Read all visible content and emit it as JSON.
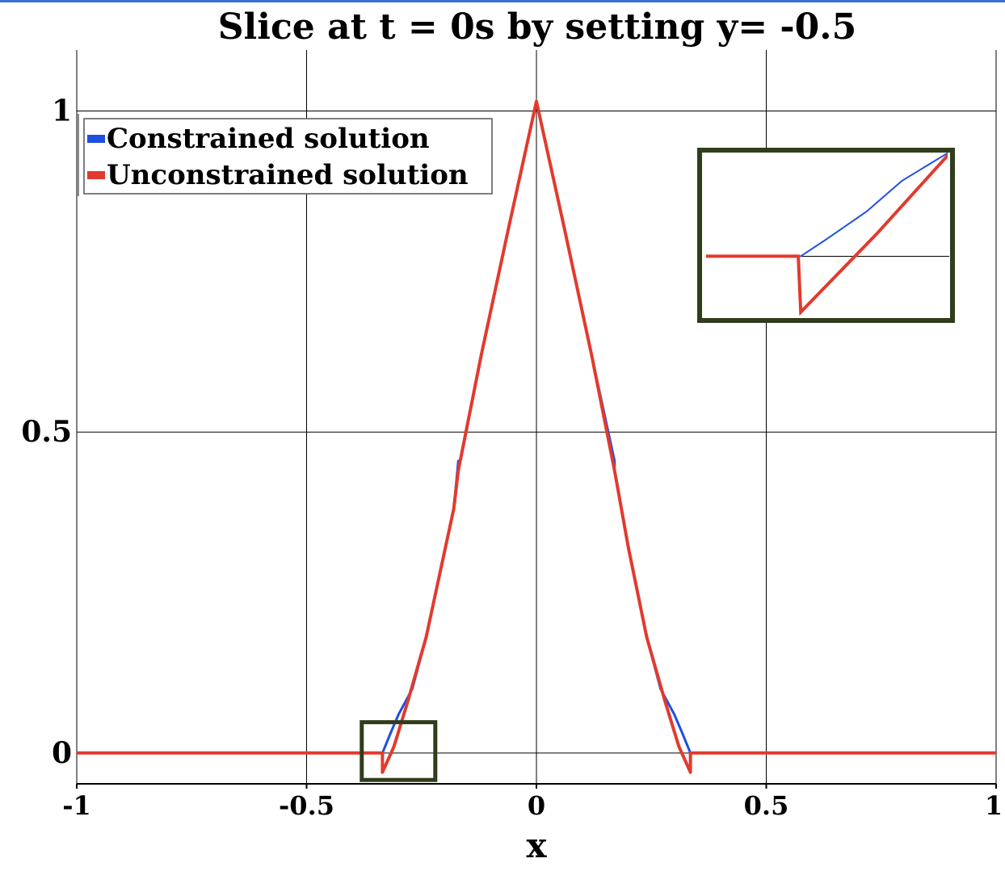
{
  "chart_data": {
    "type": "line",
    "title": "Slice at t = 0s by setting y= -0.5",
    "xlabel": "x",
    "ylabel": "",
    "xlim": [
      -1,
      1
    ],
    "ylim": [
      -0.048,
      1.095
    ],
    "xticks": [
      -1,
      -0.5,
      0,
      0.5,
      1
    ],
    "xtick_labels": [
      "-1",
      "-0.5",
      "0",
      "0.5",
      "1"
    ],
    "yticks": [
      0,
      0.5,
      1
    ],
    "ytick_labels": [
      "0",
      "0.5",
      "1"
    ],
    "grid": true,
    "legend_position": "top-left",
    "series": [
      {
        "name": "Constrained solution",
        "color": "#1f4fe0",
        "points": [
          [
            -1,
            0
          ],
          [
            -0.335,
            0
          ],
          [
            -0.318,
            0.03
          ],
          [
            -0.3,
            0.06
          ],
          [
            -0.27,
            0.1
          ],
          [
            -0.24,
            0.18
          ],
          [
            -0.21,
            0.28
          ],
          [
            -0.18,
            0.38
          ],
          [
            -0.17,
            0.455
          ],
          [
            -0.17,
            0.44
          ],
          [
            -0.12,
            0.62
          ],
          [
            -0.06,
            0.82
          ],
          [
            0,
            1.015
          ],
          [
            0.06,
            0.82
          ],
          [
            0.12,
            0.62
          ],
          [
            0.17,
            0.455
          ],
          [
            0.17,
            0.44
          ],
          [
            0.2,
            0.32
          ],
          [
            0.24,
            0.18
          ],
          [
            0.27,
            0.1
          ],
          [
            0.3,
            0.06
          ],
          [
            0.318,
            0.03
          ],
          [
            0.335,
            0
          ],
          [
            1,
            0
          ]
        ]
      },
      {
        "name": "Unconstrained solution",
        "color": "#e23a2e",
        "points": [
          [
            -1,
            0
          ],
          [
            -0.335,
            0
          ],
          [
            -0.335,
            -0.03
          ],
          [
            -0.31,
            0.01
          ],
          [
            -0.28,
            0.08
          ],
          [
            -0.24,
            0.18
          ],
          [
            -0.21,
            0.28
          ],
          [
            -0.18,
            0.38
          ],
          [
            -0.17,
            0.44
          ],
          [
            -0.12,
            0.62
          ],
          [
            -0.06,
            0.82
          ],
          [
            0,
            1.015
          ],
          [
            0.06,
            0.82
          ],
          [
            0.12,
            0.62
          ],
          [
            0.17,
            0.44
          ],
          [
            0.2,
            0.32
          ],
          [
            0.24,
            0.18
          ],
          [
            0.28,
            0.08
          ],
          [
            0.31,
            0.01
          ],
          [
            0.335,
            -0.03
          ],
          [
            0.335,
            0
          ],
          [
            1,
            0
          ]
        ]
      }
    ],
    "zoom_region": {
      "xlim": [
        -0.38,
        -0.22
      ],
      "ylim": [
        -0.042,
        0.048
      ]
    },
    "inset": {
      "xlim": [
        -0.355,
        -0.305
      ],
      "ylim": [
        -0.023,
        0.038
      ],
      "series": [
        {
          "name": "Constrained solution",
          "points": [
            [
              -0.38,
              0
            ],
            [
              -0.335,
              0
            ],
            [
              -0.33,
              0.006
            ],
            [
              -0.322,
              0.016
            ],
            [
              -0.315,
              0.027
            ],
            [
              -0.305,
              0.038
            ]
          ]
        },
        {
          "name": "Unconstrained solution",
          "points": [
            [
              -0.38,
              0
            ],
            [
              -0.3355,
              0
            ],
            [
              -0.335,
              -0.02
            ],
            [
              -0.32,
              0.008
            ],
            [
              -0.305,
              0.038
            ]
          ]
        }
      ]
    }
  }
}
